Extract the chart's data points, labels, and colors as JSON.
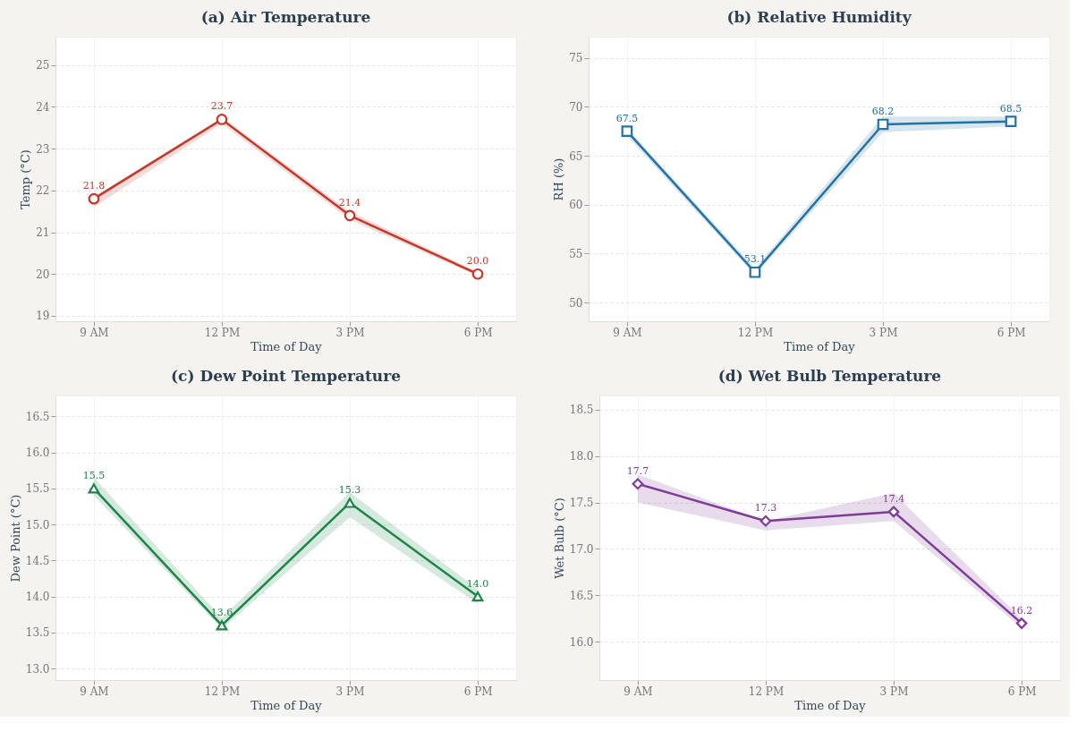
{
  "chart_data": [
    {
      "type": "line",
      "title": "(a) Air Temperature",
      "xlabel": "Time of Day",
      "ylabel": "Temp (°C)",
      "categories": [
        "9 AM",
        "12 PM",
        "3 PM",
        "6 PM"
      ],
      "series": [
        {
          "color": "#c0392b",
          "values": [
            21.8,
            23.7,
            21.4,
            20.0
          ],
          "value_labels": [
            "21.8",
            "23.7",
            "21.4",
            "20.0"
          ],
          "lower": [
            21.6,
            23.6,
            21.3,
            19.95
          ],
          "upper": [
            21.85,
            23.75,
            21.5,
            20.05
          ]
        }
      ],
      "ylim": [
        18.87,
        25.68
      ],
      "yticks": [
        19,
        20,
        21,
        22,
        23,
        24,
        25
      ],
      "grid": true,
      "marker": "circle",
      "line_style": "solid"
    },
    {
      "type": "line",
      "title": "(b) Relative Humidity",
      "xlabel": "Time of Day",
      "ylabel": "RH (%)",
      "categories": [
        "9 AM",
        "12 PM",
        "3 PM",
        "6 PM"
      ],
      "series": [
        {
          "color": "#2471a3",
          "values": [
            67.5,
            53.1,
            68.2,
            68.5
          ],
          "value_labels": [
            "67.5",
            "53.1",
            "68.2",
            "68.5"
          ],
          "lower": [
            67.0,
            52.8,
            67.4,
            68.0
          ],
          "upper": [
            67.8,
            53.5,
            69.0,
            69.0
          ]
        }
      ],
      "ylim": [
        48.1,
        77.15
      ],
      "yticks": [
        50,
        55,
        60,
        65,
        70,
        75
      ],
      "grid": true,
      "marker": "square",
      "line_style": "solid"
    },
    {
      "type": "line",
      "title": "(c) Dew Point Temperature",
      "xlabel": "Time of Day",
      "ylabel": "Dew Point (°C)",
      "categories": [
        "9 AM",
        "12 PM",
        "3 PM",
        "6 PM"
      ],
      "series": [
        {
          "color": "#1e8449",
          "values": [
            15.5,
            13.6,
            15.3,
            14.0
          ],
          "value_labels": [
            "15.5",
            "13.6",
            "15.3",
            "14.0"
          ],
          "lower": [
            15.4,
            13.55,
            15.1,
            13.9
          ],
          "upper": [
            15.65,
            13.7,
            15.45,
            14.1
          ]
        }
      ],
      "ylim": [
        12.84,
        16.79
      ],
      "yticks": [
        {
          "value": 13,
          "label": "13.0"
        },
        13.5,
        {
          "value": 14,
          "label": "14.0"
        },
        14.5,
        {
          "value": 15,
          "label": "15.0"
        },
        15.5,
        {
          "value": 16,
          "label": "16.0"
        },
        16.5
      ],
      "grid": true,
      "marker": "triangle",
      "line_style": "solid"
    },
    {
      "type": "line",
      "title": "(d) Wet Bulb Temperature",
      "xlabel": "Time of Day",
      "ylabel": "Wet Bulb (°C)",
      "categories": [
        "9 AM",
        "12 PM",
        "3 PM",
        "6 PM"
      ],
      "series": [
        {
          "color": "#7d3c98",
          "values": [
            17.7,
            17.3,
            17.4,
            16.2
          ],
          "value_labels": [
            "17.7",
            "17.3",
            "17.4",
            "16.2"
          ],
          "lower": [
            17.5,
            17.2,
            17.3,
            16.15
          ],
          "upper": [
            17.8,
            17.3,
            17.6,
            16.25
          ]
        }
      ],
      "ylim": [
        15.59,
        18.65
      ],
      "yticks": [
        {
          "value": 16,
          "label": "16.0"
        },
        16.5,
        {
          "value": 17,
          "label": "17.0"
        },
        17.5,
        {
          "value": 18,
          "label": "18.0"
        },
        18.5
      ],
      "grid": true,
      "marker": "diamond",
      "line_style": "solid"
    }
  ]
}
